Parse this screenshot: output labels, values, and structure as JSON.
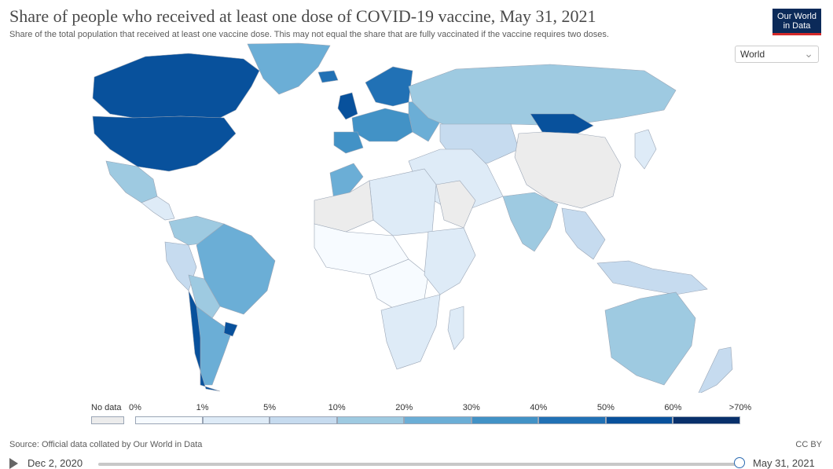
{
  "header": {
    "title": "Share of people who received at least one dose of COVID-19 vaccine, May 31, 2021",
    "subtitle": "Share of the total population that received at least one vaccine dose. This may not equal the share that are fully vaccinated if the vaccine requires two doses."
  },
  "logo": {
    "line1": "Our World",
    "line2": "in Data"
  },
  "region_select": {
    "selected": "World"
  },
  "map": {
    "colors": {
      "no_data": "#ececec",
      "b0": "#f7fbff",
      "b1": "#deebf7",
      "b5": "#c6dbef",
      "b10": "#9ecae1",
      "b20": "#6baed6",
      "b30": "#4292c6",
      "b40": "#2171b5",
      "b50": "#08519c",
      "b60": "#08306b",
      "border": "#9aa5b5"
    },
    "regions": [
      {
        "name": "Canada",
        "bin": "b50"
      },
      {
        "name": "United States",
        "bin": "b50"
      },
      {
        "name": "Greenland",
        "bin": "b20"
      },
      {
        "name": "Mexico",
        "bin": "b10"
      },
      {
        "name": "Central America",
        "bin": "b1"
      },
      {
        "name": "Colombia and Venezuela",
        "bin": "b10"
      },
      {
        "name": "Peru",
        "bin": "b5"
      },
      {
        "name": "Brazil",
        "bin": "b20"
      },
      {
        "name": "Bolivia and Paraguay",
        "bin": "b10"
      },
      {
        "name": "Argentina",
        "bin": "b20"
      },
      {
        "name": "Chile",
        "bin": "b50"
      },
      {
        "name": "Uruguay",
        "bin": "b50"
      },
      {
        "name": "United Kingdom",
        "bin": "b50"
      },
      {
        "name": "Iceland",
        "bin": "b40"
      },
      {
        "name": "Scandinavia",
        "bin": "b40"
      },
      {
        "name": "Western Europe",
        "bin": "b30"
      },
      {
        "name": "Iberia",
        "bin": "b30"
      },
      {
        "name": "Eastern Europe",
        "bin": "b20"
      },
      {
        "name": "Russia",
        "bin": "b10"
      },
      {
        "name": "Kazakhstan",
        "bin": "b5"
      },
      {
        "name": "Mongolia",
        "bin": "b50"
      },
      {
        "name": "China",
        "bin": "no_data"
      },
      {
        "name": "Middle East",
        "bin": "b1"
      },
      {
        "name": "Saudi Arabia",
        "bin": "no_data"
      },
      {
        "name": "India",
        "bin": "b10"
      },
      {
        "name": "Southeast Asia",
        "bin": "b5"
      },
      {
        "name": "Japan",
        "bin": "b1"
      },
      {
        "name": "Indonesia",
        "bin": "b5"
      },
      {
        "name": "North Africa",
        "bin": "b1"
      },
      {
        "name": "Morocco",
        "bin": "b20"
      },
      {
        "name": "Western Sahara and Algeria",
        "bin": "no_data"
      },
      {
        "name": "Sahel",
        "bin": "b0"
      },
      {
        "name": "Central Africa",
        "bin": "b0"
      },
      {
        "name": "East Africa",
        "bin": "b1"
      },
      {
        "name": "Southern Africa",
        "bin": "b1"
      },
      {
        "name": "Madagascar",
        "bin": "b1"
      },
      {
        "name": "Australia",
        "bin": "b10"
      },
      {
        "name": "New Zealand",
        "bin": "b5"
      }
    ]
  },
  "legend": {
    "no_data_label": "No data",
    "labels": [
      "0%",
      "1%",
      "5%",
      "10%",
      "20%",
      "30%",
      "40%",
      "50%",
      "60%",
      ">70%"
    ],
    "colors": [
      "#f7fbff",
      "#deebf7",
      "#c6dbef",
      "#9ecae1",
      "#6baed6",
      "#4292c6",
      "#2171b5",
      "#08519c",
      "#08306b"
    ],
    "no_data_color": "#ececec"
  },
  "footer": {
    "source": "Source: Official data collated by Our World in Data",
    "license": "CC BY"
  },
  "timeline": {
    "start_date": "Dec 2, 2020",
    "end_date": "May 31, 2021",
    "position": 1.0
  }
}
